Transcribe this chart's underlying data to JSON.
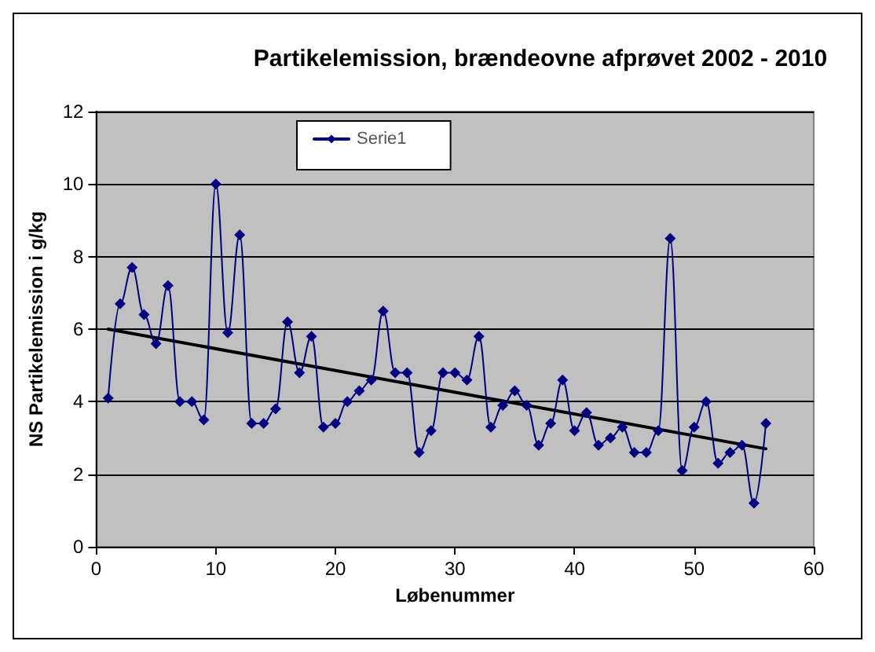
{
  "chart_data": {
    "type": "line",
    "title": "Partikelemission, brændeovne afprøvet 2002 - 2010",
    "xlabel": "Løbenummer",
    "ylabel": "NS Partikelemission i g/kg",
    "x": [
      1,
      2,
      3,
      4,
      5,
      6,
      7,
      8,
      9,
      10,
      11,
      12,
      13,
      14,
      15,
      16,
      17,
      18,
      19,
      20,
      21,
      22,
      23,
      24,
      25,
      26,
      27,
      28,
      29,
      30,
      31,
      32,
      33,
      34,
      35,
      36,
      37,
      38,
      39,
      40,
      41,
      42,
      43,
      44,
      45,
      46,
      47,
      48,
      49,
      50,
      51,
      52,
      53,
      54,
      55,
      56
    ],
    "series": [
      {
        "name": "Serie1",
        "color": "#000080",
        "marker": "diamond",
        "values": [
          4.1,
          6.7,
          7.7,
          6.4,
          5.6,
          7.2,
          4.0,
          4.0,
          3.5,
          10.0,
          5.9,
          8.6,
          3.4,
          3.4,
          3.8,
          6.2,
          4.8,
          5.8,
          3.3,
          3.4,
          4.0,
          4.3,
          4.6,
          6.5,
          4.8,
          4.8,
          2.6,
          3.2,
          4.8,
          4.8,
          4.6,
          5.8,
          3.3,
          3.9,
          4.3,
          3.9,
          2.8,
          3.4,
          4.6,
          3.2,
          3.7,
          2.8,
          3.0,
          3.3,
          2.6,
          2.6,
          3.2,
          8.5,
          2.1,
          3.3,
          4.0,
          2.3,
          2.6,
          2.8,
          1.2,
          3.4
        ]
      },
      {
        "type": "line",
        "color": "#000000",
        "marker": "none",
        "x": [
          1,
          56
        ],
        "values": [
          6.0,
          2.7
        ]
      }
    ],
    "xlim": [
      0,
      60
    ],
    "xticks": [
      0,
      10,
      20,
      30,
      40,
      50,
      60
    ],
    "ylim": [
      0,
      12
    ],
    "yticks": [
      0,
      2,
      4,
      6,
      8,
      10,
      12
    ],
    "grid": "y",
    "legend": "top left"
  }
}
